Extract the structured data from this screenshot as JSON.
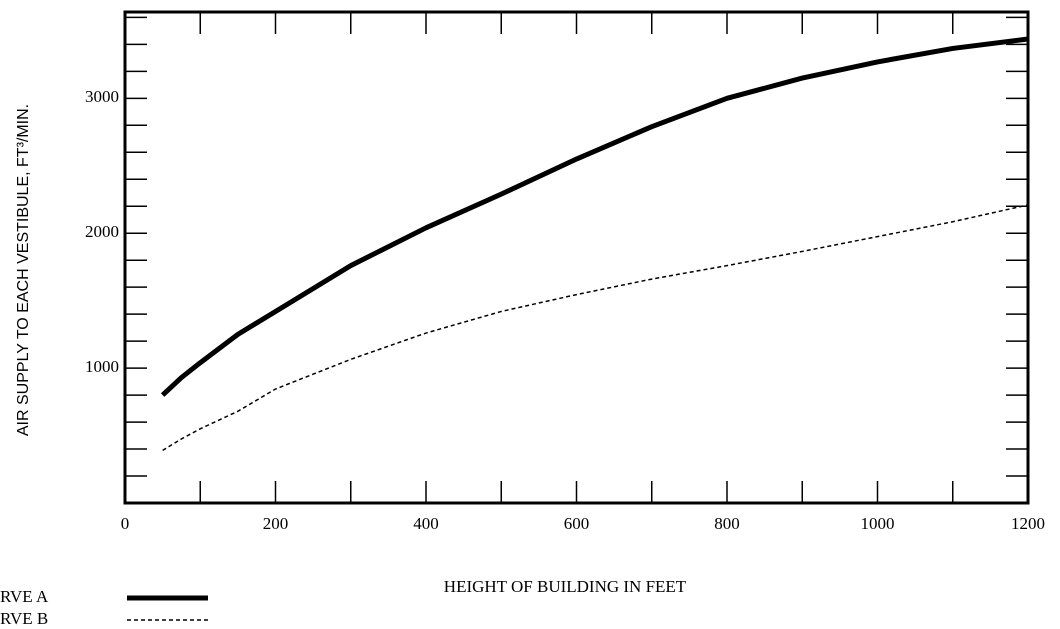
{
  "chart_data": {
    "type": "line",
    "xlabel": "HEIGHT OF BUILDING IN FEET",
    "ylabel": "AIR SUPPLY TO EACH VESTIBULE, FT³/MIN.",
    "x": [
      50,
      75,
      100,
      150,
      200,
      300,
      400,
      500,
      600,
      700,
      800,
      900,
      1000,
      1100,
      1200
    ],
    "series": [
      {
        "name": "RVE A",
        "color": "#000000",
        "line_style": "solid",
        "values": [
          800,
          930,
          1040,
          1250,
          1420,
          1760,
          2040,
          2290,
          2550,
          2790,
          3000,
          3150,
          3270,
          3370,
          3440
        ]
      },
      {
        "name": "RVE B",
        "color": "#000000",
        "line_style": "dashed",
        "values": [
          390,
          475,
          550,
          680,
          845,
          1065,
          1260,
          1420,
          1545,
          1660,
          1760,
          1865,
          1975,
          2085,
          2210
        ]
      }
    ],
    "xlim": [
      0,
      1200
    ],
    "xticks": [
      0,
      200,
      400,
      600,
      800,
      1000,
      1200
    ],
    "x_minor_ticks": [
      100,
      300,
      500,
      700,
      900,
      1100
    ],
    "ylim": [
      0,
      3640
    ],
    "yticks": [
      1000,
      2000,
      3000
    ],
    "y_minor_ticks": [
      200,
      400,
      600,
      800,
      1200,
      1400,
      1600,
      1800,
      2200,
      2400,
      2600,
      2800,
      3200,
      3400,
      3600
    ],
    "grid": false,
    "legend": "bottom-left"
  }
}
